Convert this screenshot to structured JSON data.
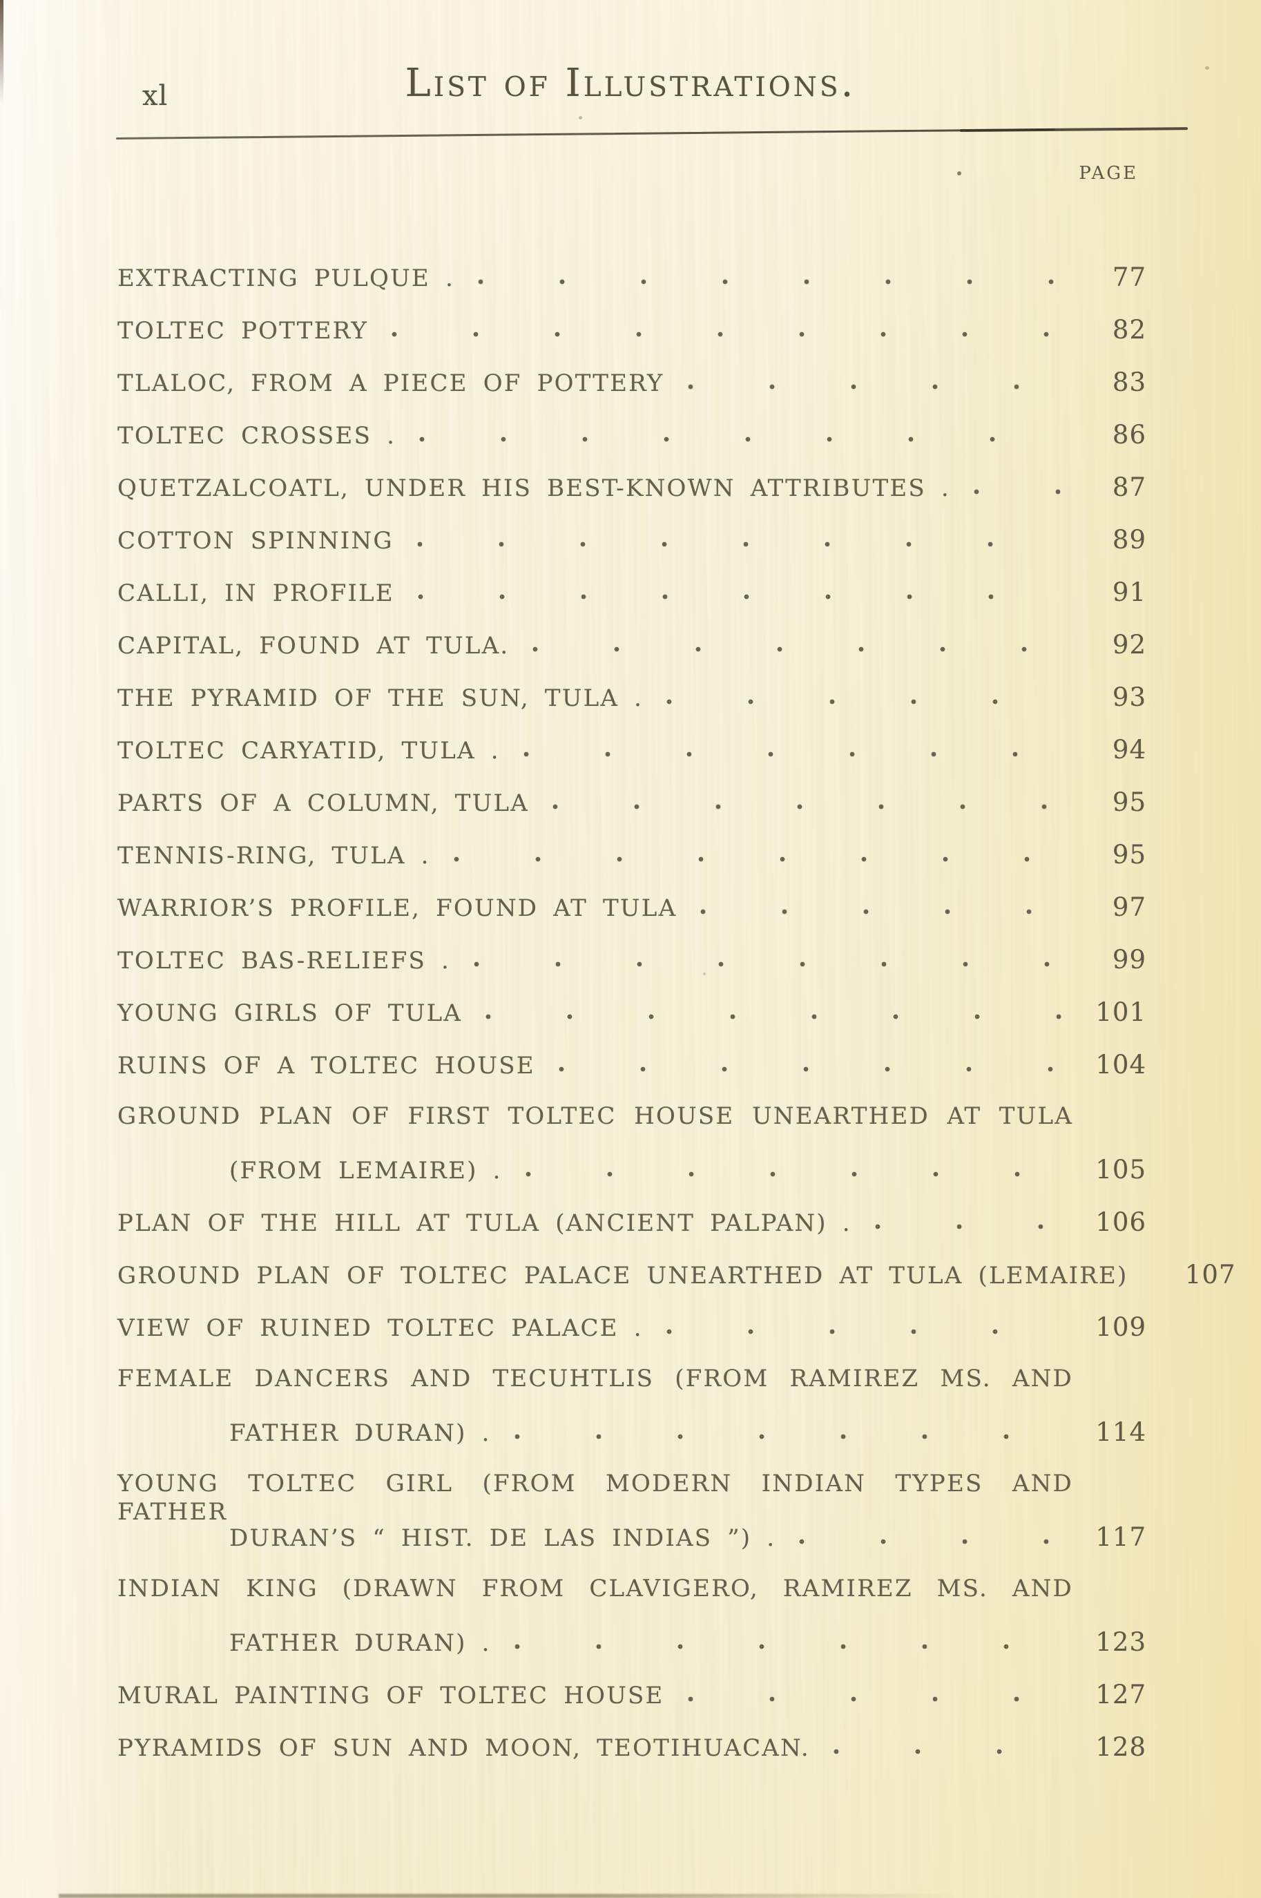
{
  "page": {
    "folio": "xl",
    "header_title": "List of Illustrations.",
    "page_column_label": "PAGE"
  },
  "toc": {
    "lines": [
      {
        "text": "EXTRACTING PULQUE .",
        "indent": false,
        "justified": false,
        "leader": true,
        "page": "77"
      },
      {
        "text": "TOLTEC POTTERY",
        "indent": false,
        "justified": false,
        "leader": true,
        "page": "82"
      },
      {
        "text": "TLALOC, FROM A PIECE OF POTTERY",
        "indent": false,
        "justified": false,
        "leader": true,
        "page": "83"
      },
      {
        "text": "TOLTEC CROSSES .",
        "indent": false,
        "justified": false,
        "leader": true,
        "page": "86"
      },
      {
        "text": "QUETZALCOATL, UNDER HIS BEST-KNOWN ATTRIBUTES .",
        "indent": false,
        "justified": false,
        "leader": true,
        "page": "87"
      },
      {
        "text": "COTTON SPINNING",
        "indent": false,
        "justified": false,
        "leader": true,
        "page": "89"
      },
      {
        "text": "CALLI, IN PROFILE",
        "indent": false,
        "justified": false,
        "leader": true,
        "page": "91"
      },
      {
        "text": "CAPITAL, FOUND AT TULA.",
        "indent": false,
        "justified": false,
        "leader": true,
        "page": "92"
      },
      {
        "text": "THE PYRAMID OF THE SUN, TULA .",
        "indent": false,
        "justified": false,
        "leader": true,
        "page": "93"
      },
      {
        "text": "TOLTEC CARYATID, TULA .",
        "indent": false,
        "justified": false,
        "leader": true,
        "page": "94"
      },
      {
        "text": "PARTS OF A COLUMN, TULA",
        "indent": false,
        "justified": false,
        "leader": true,
        "page": "95"
      },
      {
        "text": "TENNIS-RING, TULA .",
        "indent": false,
        "justified": false,
        "leader": true,
        "page": "95"
      },
      {
        "text": "WARRIOR’S PROFILE, FOUND AT TULA",
        "indent": false,
        "justified": false,
        "leader": true,
        "page": "97"
      },
      {
        "text": "TOLTEC BAS-RELIEFS .",
        "indent": false,
        "justified": false,
        "leader": true,
        "page": "99"
      },
      {
        "text": "YOUNG GIRLS OF TULA",
        "indent": false,
        "justified": false,
        "leader": true,
        "page": "101"
      },
      {
        "text": "RUINS OF A TOLTEC HOUSE",
        "indent": false,
        "justified": false,
        "leader": true,
        "page": "104"
      },
      {
        "text": "GROUND PLAN OF FIRST TOLTEC HOUSE UNEARTHED AT TULA",
        "indent": false,
        "justified": true,
        "leader": false,
        "page": ""
      },
      {
        "text": "(FROM LEMAIRE) .",
        "indent": true,
        "justified": false,
        "leader": true,
        "page": "105"
      },
      {
        "text": "PLAN OF THE HILL AT TULA (ANCIENT PALPAN) .",
        "indent": false,
        "justified": false,
        "leader": true,
        "page": "106"
      },
      {
        "text": "GROUND PLAN OF TOLTEC PALACE UNEARTHED AT TULA (LEMAIRE)",
        "indent": false,
        "justified": false,
        "leader": false,
        "page": "107"
      },
      {
        "text": "VIEW OF RUINED TOLTEC PALACE .",
        "indent": false,
        "justified": false,
        "leader": true,
        "page": "109"
      },
      {
        "text": "FEMALE DANCERS AND TECUHTLIS (FROM RAMIREZ MS. AND",
        "indent": false,
        "justified": true,
        "leader": false,
        "page": ""
      },
      {
        "text": "FATHER DURAN) .",
        "indent": true,
        "justified": false,
        "leader": true,
        "page": "114"
      },
      {
        "text": "YOUNG TOLTEC GIRL (FROM MODERN INDIAN TYPES AND FATHER",
        "indent": false,
        "justified": true,
        "leader": false,
        "page": ""
      },
      {
        "text": "DURAN’S “ HIST. DE LAS INDIAS ”) .",
        "indent": true,
        "justified": false,
        "leader": true,
        "page": "117"
      },
      {
        "text": "INDIAN KING (DRAWN FROM CLAVIGERO, RAMIREZ MS. AND",
        "indent": false,
        "justified": true,
        "leader": false,
        "page": ""
      },
      {
        "text": "FATHER DURAN) .",
        "indent": true,
        "justified": false,
        "leader": true,
        "page": "123"
      },
      {
        "text": "MURAL PAINTING OF TOLTEC HOUSE",
        "indent": false,
        "justified": false,
        "leader": true,
        "page": "127"
      },
      {
        "text": "PYRAMIDS OF SUN AND MOON, TEOTIHUACAN.",
        "indent": false,
        "justified": false,
        "leader": true,
        "page": "128"
      }
    ]
  }
}
